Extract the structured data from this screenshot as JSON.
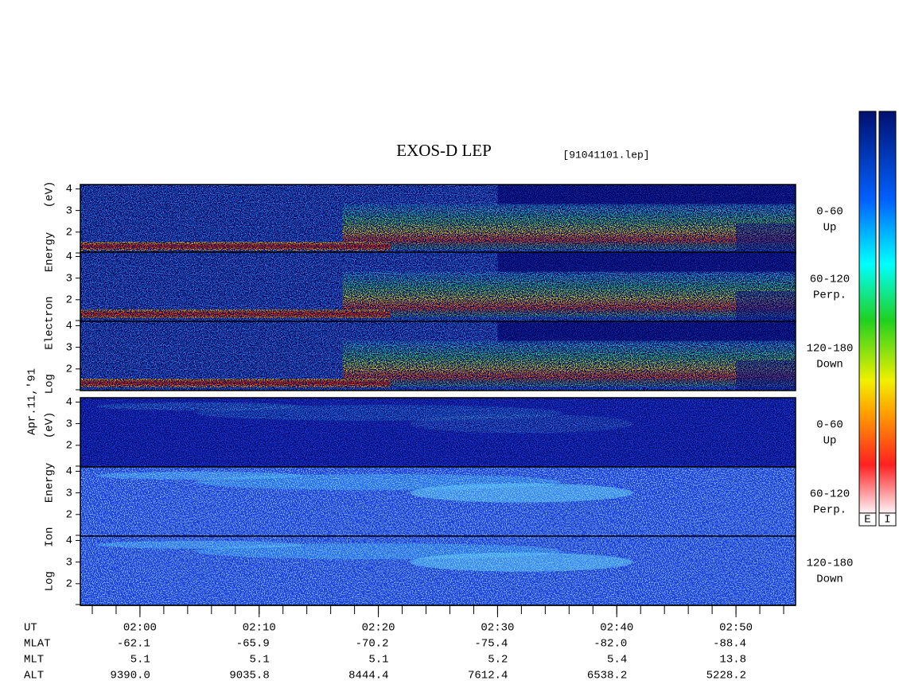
{
  "chart_data": {
    "type": "spectrogram",
    "title": "EXOS-D LEP",
    "file": "[91041101.lep]",
    "date": "Apr.11,'91",
    "groups": [
      {
        "label": "Log Electron Energy (eV)",
        "panels": [
          {
            "range": "0-60",
            "direction": "Up"
          },
          {
            "range": "60-120",
            "direction": "Perp."
          },
          {
            "range": "120-180",
            "direction": "Down"
          }
        ]
      },
      {
        "label": "Log Ion Energy (eV)",
        "panels": [
          {
            "range": "0-60",
            "direction": "Up"
          },
          {
            "range": "60-120",
            "direction": "Perp."
          },
          {
            "range": "120-180",
            "direction": "Down"
          }
        ]
      }
    ],
    "ylim": [
      1,
      4.2
    ],
    "yticks": [
      2,
      3,
      4
    ],
    "xlim": [
      115,
      175
    ],
    "xticks": [
      {
        "value": 120,
        "label": "02:00"
      },
      {
        "value": 130,
        "label": "02:10"
      },
      {
        "value": 140,
        "label": "02:20"
      },
      {
        "value": 150,
        "label": "02:30"
      },
      {
        "value": 160,
        "label": "02:40"
      },
      {
        "value": 170,
        "label": "02:50"
      }
    ],
    "x_label": "UT",
    "rows": [
      {
        "name": "MLAT",
        "values": [
          "-62.1",
          "-65.9",
          "-70.2",
          "-75.4",
          "-82.0",
          "-88.4"
        ]
      },
      {
        "name": "MLT",
        "values": [
          "5.1",
          "5.1",
          "5.1",
          "5.2",
          "5.4",
          "13.8"
        ]
      },
      {
        "name": "ALT",
        "values": [
          "9390.0",
          "9035.8",
          "8444.4",
          "7612.4",
          "6538.2",
          "5228.2"
        ]
      }
    ],
    "colorbars": [
      "E",
      "I"
    ]
  }
}
